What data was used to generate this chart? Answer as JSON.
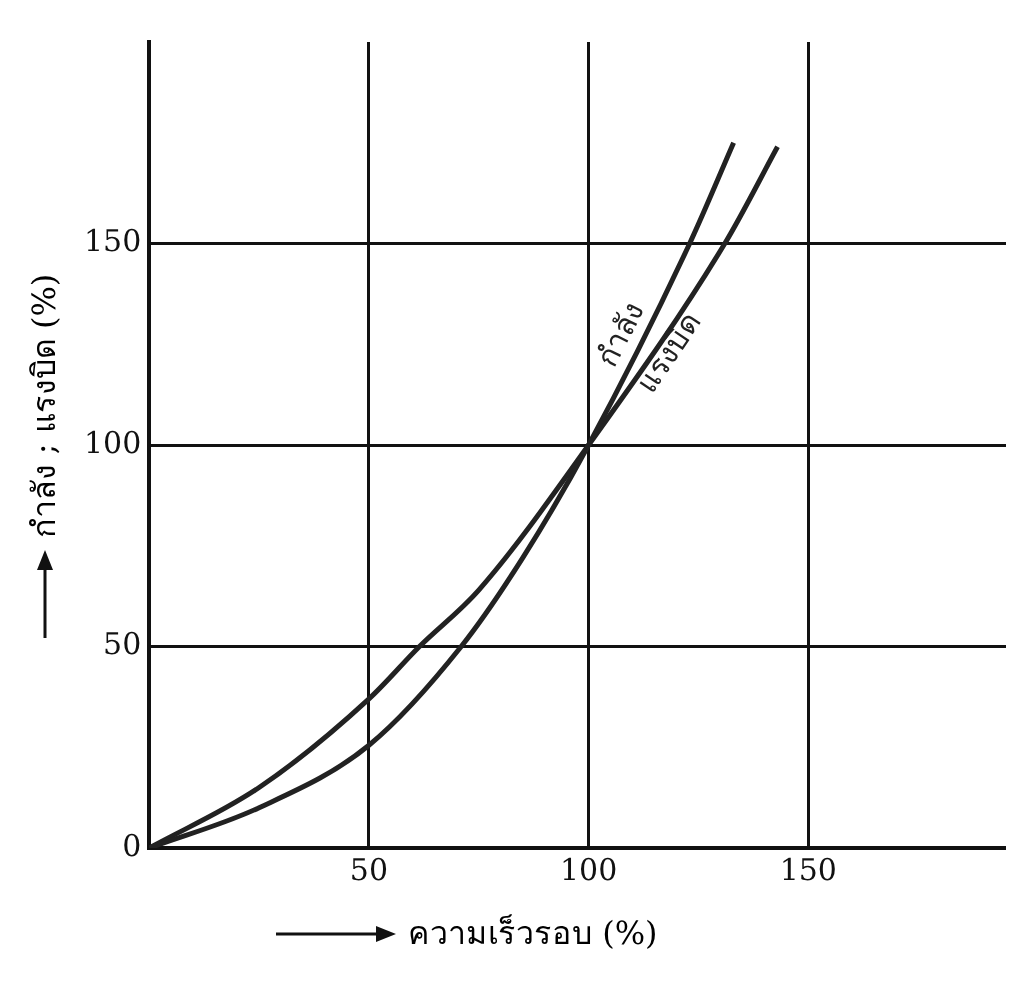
{
  "chart_data": {
    "type": "line",
    "xlabel": "ความเร็วรอบ (%)",
    "ylabel": "กำลัง ; แรงบิด (%)",
    "xlim": [
      0,
      195
    ],
    "ylim": [
      0,
      200
    ],
    "xticks": [
      {
        "value": 0,
        "label": null
      },
      50,
      100,
      150
    ],
    "yticks": [
      0,
      50,
      100,
      150
    ],
    "grid": true,
    "legend": false,
    "marker": "none",
    "line_style": "solid",
    "series": [
      {
        "name": "กำลัง",
        "color": "#222222",
        "x": [
          0,
          25,
          50,
          71,
          85,
          100,
          123,
          133
        ],
        "values": [
          0,
          10,
          25.5,
          50,
          72,
          100,
          150,
          175
        ]
      },
      {
        "name": "แรงบิด",
        "color": "#222222",
        "x": [
          0,
          25,
          50,
          61.5,
          75,
          100,
          131,
          143
        ],
        "values": [
          0,
          15,
          37,
          50,
          64,
          100,
          150,
          174
        ]
      }
    ]
  }
}
